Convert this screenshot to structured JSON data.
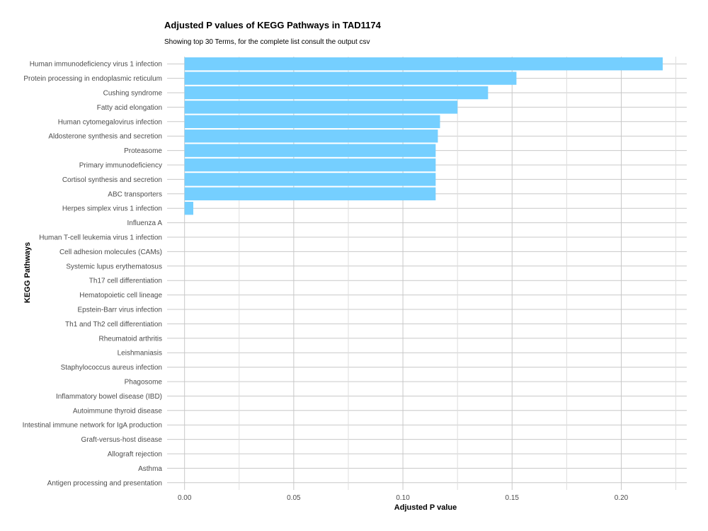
{
  "chart_data": {
    "type": "bar",
    "orientation": "horizontal",
    "title": "Adjusted P values of KEGG Pathways in TAD1174",
    "subtitle": "Showing top 30 Terms, for the complete list consult the output csv",
    "xlabel": "Adjusted P value",
    "ylabel": "KEGG Pathways",
    "xlim": [
      -0.008,
      0.23
    ],
    "xticks": [
      "0.00",
      "0.05",
      "0.10",
      "0.15",
      "0.20"
    ],
    "grid": true,
    "bar_color": "#75CFFF",
    "categories": [
      "Human immunodeficiency virus 1 infection",
      "Protein processing in endoplasmic reticulum",
      "Cushing syndrome",
      "Fatty acid elongation",
      "Human cytomegalovirus infection",
      "Aldosterone synthesis and secretion",
      "Proteasome",
      "Primary immunodeficiency",
      "Cortisol synthesis and secretion",
      "ABC transporters",
      "Herpes simplex virus 1 infection",
      "Influenza A",
      "Human T-cell leukemia virus 1 infection",
      "Cell adhesion molecules (CAMs)",
      "Systemic lupus erythematosus",
      "Th17 cell differentiation",
      "Hematopoietic cell lineage",
      "Epstein-Barr virus infection",
      "Th1 and Th2 cell differentiation",
      "Rheumatoid arthritis",
      "Leishmaniasis",
      "Staphylococcus aureus infection",
      "Phagosome",
      "Inflammatory bowel disease (IBD)",
      "Autoimmune thyroid disease",
      "Intestinal immune network for IgA production",
      "Graft-versus-host disease",
      "Allograft rejection",
      "Asthma",
      "Antigen processing and presentation"
    ],
    "values": [
      0.219,
      0.152,
      0.139,
      0.125,
      0.117,
      0.116,
      0.115,
      0.115,
      0.115,
      0.115,
      0.004,
      0,
      0,
      0,
      0,
      0,
      0,
      0,
      0,
      0,
      0,
      0,
      0,
      0,
      0,
      0,
      0,
      0,
      0,
      0
    ]
  }
}
